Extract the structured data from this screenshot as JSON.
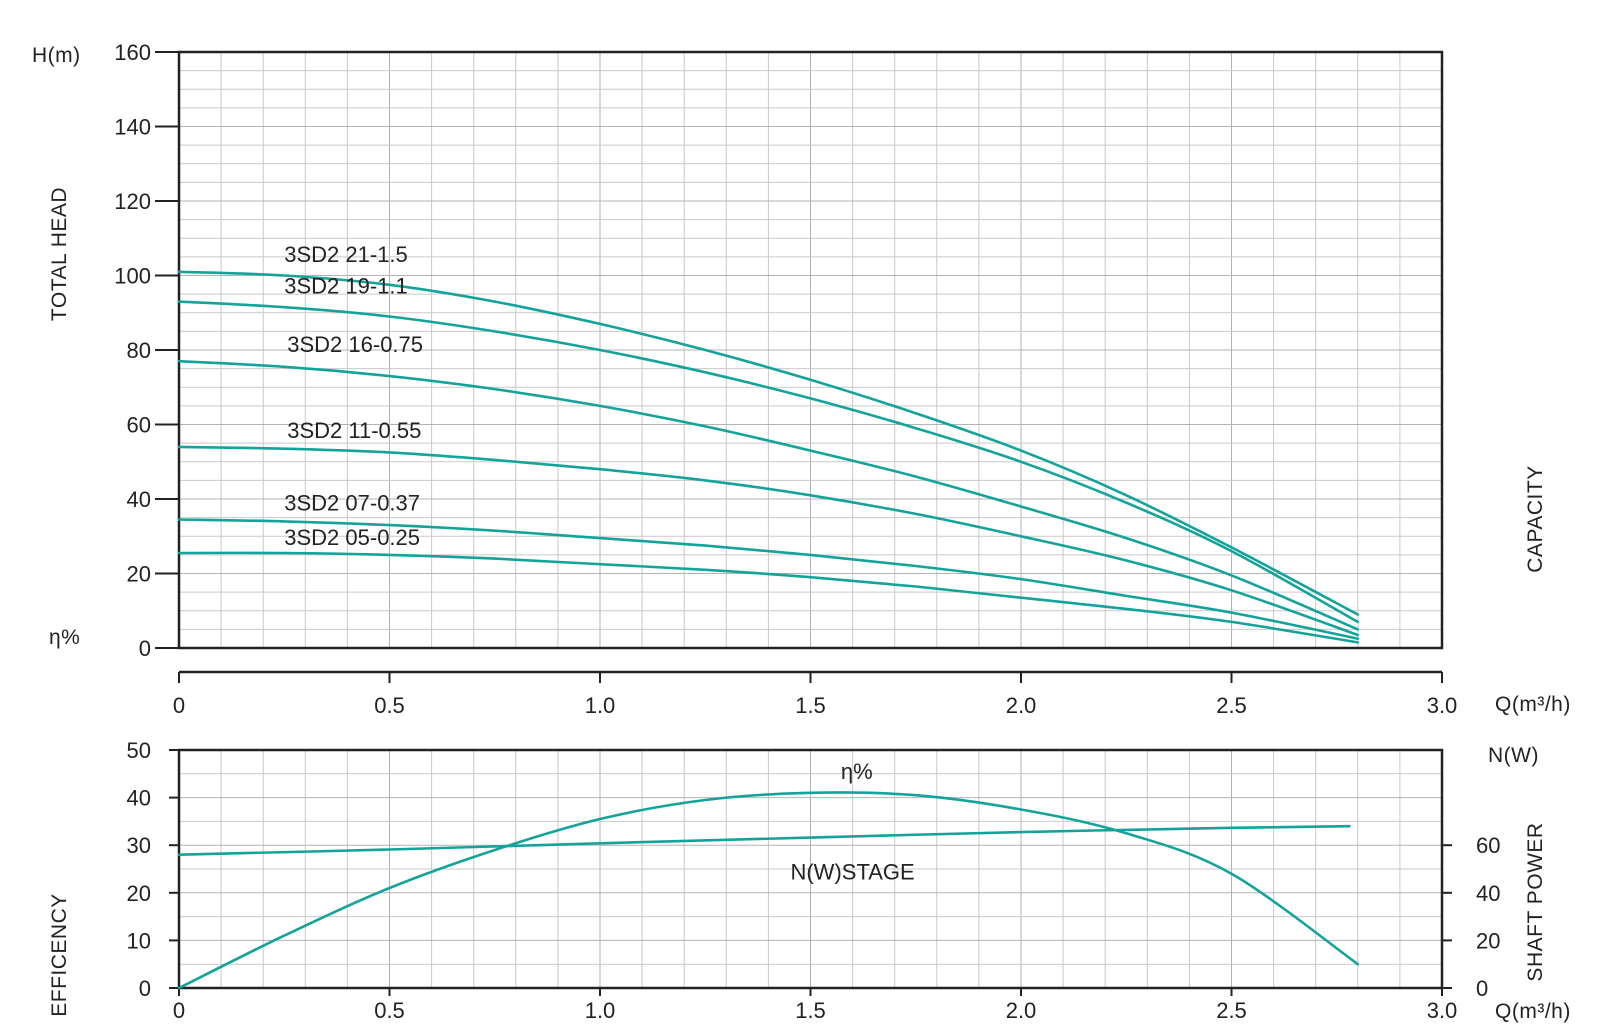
{
  "chart_data": [
    {
      "type": "line",
      "panel": "head",
      "ylabel": "TOTAL HEAD",
      "yunit": "H(m)",
      "right_label": "CAPACITY",
      "xlabel": "Q(m³/h)",
      "xlim": [
        0,
        3.0
      ],
      "ylim": [
        0,
        160
      ],
      "xticks": [
        "0",
        "0.5",
        "1.0",
        "1.5",
        "2.0",
        "2.5",
        "3.0"
      ],
      "yticks": [
        "0",
        "20",
        "40",
        "60",
        "80",
        "100",
        "120",
        "140",
        "160"
      ],
      "eta_marker": "η%",
      "grid": true,
      "series": [
        {
          "name": "3SD2 21-1.5",
          "x": [
            0,
            0.25,
            0.5,
            0.75,
            1.0,
            1.25,
            1.5,
            1.75,
            2.0,
            2.25,
            2.5,
            2.8
          ],
          "y": [
            101,
            100,
            97.5,
            93,
            87,
            80,
            72,
            63,
            53,
            41,
            27,
            9
          ]
        },
        {
          "name": "3SD2 19-1.1",
          "x": [
            0,
            0.25,
            0.5,
            0.75,
            1.0,
            1.25,
            1.5,
            1.75,
            2.0,
            2.25,
            2.5,
            2.8
          ],
          "y": [
            93,
            91.5,
            89,
            85,
            80,
            74,
            67,
            59,
            50,
            39,
            26,
            7
          ]
        },
        {
          "name": "3SD2 16-0.75",
          "x": [
            0,
            0.25,
            0.5,
            0.75,
            1.0,
            1.25,
            1.5,
            1.75,
            2.0,
            2.25,
            2.5,
            2.8
          ],
          "y": [
            77,
            75.5,
            73,
            69.5,
            65,
            59.5,
            53,
            46,
            38,
            29.5,
            19.5,
            5
          ]
        },
        {
          "name": "3SD2 11-0.55",
          "x": [
            0,
            0.25,
            0.5,
            0.75,
            1.0,
            1.25,
            1.5,
            1.75,
            2.0,
            2.25,
            2.5,
            2.8
          ],
          "y": [
            54,
            53.5,
            52.5,
            50.5,
            48,
            45,
            41,
            36,
            30,
            23.5,
            15.5,
            3.5
          ]
        },
        {
          "name": "3SD2 07-0.37",
          "x": [
            0,
            0.25,
            0.5,
            0.75,
            1.0,
            1.25,
            1.5,
            1.75,
            2.0,
            2.25,
            2.5,
            2.8
          ],
          "y": [
            34.5,
            34,
            33,
            31.5,
            29.5,
            27.5,
            25,
            22,
            18.5,
            14,
            9.5,
            2.5
          ]
        },
        {
          "name": "3SD2 05-0.25",
          "x": [
            0,
            0.25,
            0.5,
            0.75,
            1.0,
            1.25,
            1.5,
            1.75,
            2.0,
            2.25,
            2.5,
            2.8
          ],
          "y": [
            25.5,
            25.5,
            25,
            24,
            22.5,
            21,
            19,
            16.5,
            13.5,
            10.5,
            7,
            1.5
          ]
        }
      ]
    },
    {
      "type": "line",
      "panel": "efficiency_power",
      "ylabel": "EFFICENCY",
      "y2label": "SHAFT POWER",
      "y2unit": "N(W)",
      "xlabel": "Q(m³/h)",
      "xlim": [
        0,
        3.0
      ],
      "ylim": [
        0,
        50
      ],
      "y2lim": [
        0,
        100
      ],
      "xticks": [
        "0",
        "0.5",
        "1.0",
        "1.5",
        "2.0",
        "2.5",
        "3.0"
      ],
      "yticks": [
        "0",
        "10",
        "20",
        "30",
        "40",
        "50"
      ],
      "y2ticks": [
        "0",
        "20",
        "40",
        "60"
      ],
      "grid": true,
      "series": [
        {
          "name": "η%",
          "axis": "left",
          "x": [
            0,
            0.25,
            0.5,
            0.75,
            1.0,
            1.25,
            1.5,
            1.75,
            2.0,
            2.25,
            2.5,
            2.8
          ],
          "y": [
            0,
            11,
            21,
            29,
            35.5,
            39.5,
            41,
            40.5,
            37.5,
            32.5,
            24,
            5
          ]
        },
        {
          "name": "N(W)STAGE",
          "axis": "right",
          "x": [
            0,
            0.5,
            1.0,
            1.5,
            2.0,
            2.5,
            2.78
          ],
          "y": [
            56,
            58.2,
            60.8,
            63.2,
            65.5,
            67.3,
            68
          ]
        }
      ]
    }
  ],
  "colors": {
    "curve": "#14a39a",
    "frame": "#222222"
  }
}
